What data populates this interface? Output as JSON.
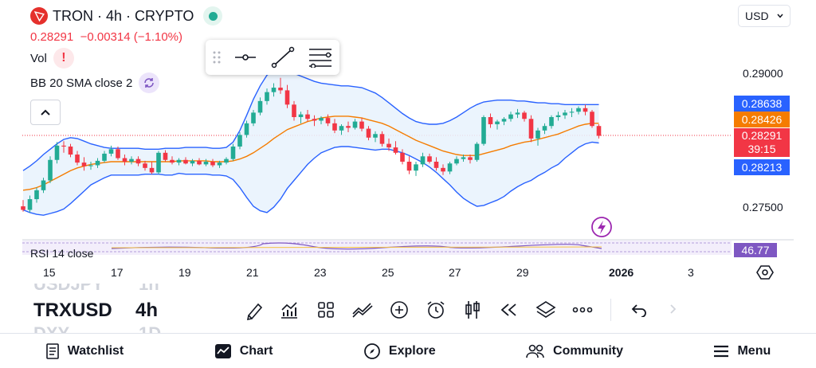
{
  "header": {
    "title": "TRON · 4h · CRYPTO",
    "price": "0.28291",
    "change": "−0.00314 (−1.10%)",
    "currency": "USD"
  },
  "indicators": {
    "vol_label": "Vol",
    "bb_label": "BB 20 SMA close 2",
    "rsi_label": "RSI 14 close",
    "rsi_value": "46.77"
  },
  "price_axis": {
    "labels": [
      "0.29000",
      "0.27500"
    ],
    "tags": {
      "bb_upper": "0.28638",
      "sma": "0.28426",
      "last": "0.28291",
      "countdown": "39:15",
      "bb_lower": "0.28213"
    }
  },
  "time_axis": {
    "labels": [
      "15",
      "17",
      "19",
      "21",
      "23",
      "25",
      "27",
      "29",
      "2026",
      "3"
    ]
  },
  "symbols": {
    "above": "USDJPY",
    "above_tf": "1h",
    "current": "TRXUSD",
    "current_tf": "4h",
    "below": "DXY",
    "below_tf": "1D"
  },
  "nav": {
    "watchlist": "Watchlist",
    "chart": "Chart",
    "explore": "Explore",
    "community": "Community",
    "menu": "Menu"
  },
  "colors": {
    "up": "#22ab94",
    "down": "#f23645",
    "bb": "#2962ff",
    "sma": "#f57c00",
    "rsi": "#7e57c2"
  },
  "chart_data": {
    "type": "candlestick",
    "title": "TRON · 4h · CRYPTO",
    "x_labels": [
      "15",
      "17",
      "19",
      "21",
      "23",
      "25",
      "27",
      "29",
      "2026",
      "3"
    ],
    "ylim": [
      0.2725,
      0.2935
    ],
    "candles": [
      [
        0.275,
        0.2757,
        0.2744,
        0.2746
      ],
      [
        0.2746,
        0.2762,
        0.2743,
        0.2758
      ],
      [
        0.2758,
        0.2771,
        0.2754,
        0.2768
      ],
      [
        0.2768,
        0.2782,
        0.2765,
        0.2779
      ],
      [
        0.2779,
        0.2806,
        0.2776,
        0.2802
      ],
      [
        0.2802,
        0.2822,
        0.2798,
        0.2818
      ],
      [
        0.2818,
        0.2823,
        0.281,
        0.2817
      ],
      [
        0.2817,
        0.282,
        0.2805,
        0.2808
      ],
      [
        0.2808,
        0.2812,
        0.2796,
        0.2799
      ],
      [
        0.2799,
        0.2805,
        0.279,
        0.2795
      ],
      [
        0.2795,
        0.28,
        0.2791,
        0.2796
      ],
      [
        0.2796,
        0.2804,
        0.2793,
        0.2801
      ],
      [
        0.2801,
        0.2812,
        0.2799,
        0.2809
      ],
      [
        0.2809,
        0.2818,
        0.2806,
        0.2814
      ],
      [
        0.2814,
        0.2817,
        0.2802,
        0.2804
      ],
      [
        0.2804,
        0.2808,
        0.2796,
        0.28
      ],
      [
        0.28,
        0.2806,
        0.2797,
        0.2803
      ],
      [
        0.2803,
        0.2806,
        0.2795,
        0.2798
      ],
      [
        0.2798,
        0.2801,
        0.279,
        0.2793
      ],
      [
        0.2793,
        0.28,
        0.2786,
        0.2788
      ],
      [
        0.2788,
        0.2812,
        0.2786,
        0.281
      ],
      [
        0.281,
        0.2813,
        0.28,
        0.2802
      ],
      [
        0.2802,
        0.2806,
        0.2797,
        0.2799
      ],
      [
        0.2799,
        0.2804,
        0.2796,
        0.2802
      ],
      [
        0.2802,
        0.2805,
        0.2797,
        0.2798
      ],
      [
        0.2798,
        0.2803,
        0.2795,
        0.2801
      ],
      [
        0.2801,
        0.2804,
        0.2796,
        0.2797
      ],
      [
        0.2797,
        0.2803,
        0.2795,
        0.28
      ],
      [
        0.28,
        0.2803,
        0.2794,
        0.2796
      ],
      [
        0.2796,
        0.2801,
        0.2793,
        0.2799
      ],
      [
        0.2799,
        0.2805,
        0.2797,
        0.2803
      ],
      [
        0.2803,
        0.282,
        0.2801,
        0.2817
      ],
      [
        0.2817,
        0.2833,
        0.2814,
        0.283
      ],
      [
        0.283,
        0.2846,
        0.2827,
        0.2843
      ],
      [
        0.2843,
        0.2858,
        0.284,
        0.2855
      ],
      [
        0.2855,
        0.2872,
        0.2852,
        0.2868
      ],
      [
        0.2868,
        0.2882,
        0.2864,
        0.2878
      ],
      [
        0.2878,
        0.2888,
        0.2873,
        0.2883
      ],
      [
        0.2883,
        0.2894,
        0.2876,
        0.288
      ],
      [
        0.288,
        0.2886,
        0.286,
        0.2864
      ],
      [
        0.2864,
        0.2868,
        0.2846,
        0.285
      ],
      [
        0.285,
        0.2856,
        0.2843,
        0.2853
      ],
      [
        0.2853,
        0.2858,
        0.2845,
        0.2848
      ],
      [
        0.2848,
        0.2852,
        0.284,
        0.2846
      ],
      [
        0.2846,
        0.2851,
        0.2842,
        0.2849
      ],
      [
        0.2849,
        0.2853,
        0.284,
        0.2843
      ],
      [
        0.2843,
        0.2848,
        0.2832,
        0.2835
      ],
      [
        0.2835,
        0.2842,
        0.283,
        0.284
      ],
      [
        0.284,
        0.2845,
        0.2833,
        0.2838
      ],
      [
        0.2838,
        0.2848,
        0.2836,
        0.2845
      ],
      [
        0.2845,
        0.2849,
        0.2834,
        0.2837
      ],
      [
        0.2837,
        0.284,
        0.2824,
        0.2827
      ],
      [
        0.2827,
        0.2834,
        0.2822,
        0.2831
      ],
      [
        0.2831,
        0.2834,
        0.2817,
        0.282
      ],
      [
        0.282,
        0.2826,
        0.2812,
        0.2816
      ],
      [
        0.2816,
        0.2823,
        0.2808,
        0.281
      ],
      [
        0.281,
        0.2814,
        0.2797,
        0.28
      ],
      [
        0.28,
        0.2806,
        0.2786,
        0.279
      ],
      [
        0.279,
        0.28,
        0.2784,
        0.2797
      ],
      [
        0.2797,
        0.281,
        0.2794,
        0.2806
      ],
      [
        0.2806,
        0.2809,
        0.2798,
        0.28
      ],
      [
        0.28,
        0.2805,
        0.279,
        0.2793
      ],
      [
        0.2793,
        0.2797,
        0.2785,
        0.2789
      ],
      [
        0.2789,
        0.28,
        0.2786,
        0.2798
      ],
      [
        0.2798,
        0.2806,
        0.2796,
        0.2803
      ],
      [
        0.2803,
        0.2808,
        0.28,
        0.2805
      ],
      [
        0.2805,
        0.2808,
        0.2798,
        0.2802
      ],
      [
        0.2802,
        0.2822,
        0.28,
        0.282
      ],
      [
        0.282,
        0.2852,
        0.2818,
        0.285
      ],
      [
        0.285,
        0.2854,
        0.2838,
        0.2842
      ],
      [
        0.2842,
        0.2847,
        0.2836,
        0.2845
      ],
      [
        0.2845,
        0.285,
        0.2841,
        0.2848
      ],
      [
        0.2848,
        0.2856,
        0.2845,
        0.2853
      ],
      [
        0.2853,
        0.2859,
        0.2849,
        0.2855
      ],
      [
        0.2855,
        0.2857,
        0.2845,
        0.2848
      ],
      [
        0.2848,
        0.2852,
        0.2822,
        0.2826
      ],
      [
        0.2826,
        0.2838,
        0.2818,
        0.2835
      ],
      [
        0.2835,
        0.2843,
        0.2831,
        0.284
      ],
      [
        0.284,
        0.2852,
        0.2837,
        0.285
      ],
      [
        0.285,
        0.2856,
        0.2846,
        0.2852
      ],
      [
        0.2852,
        0.2858,
        0.2848,
        0.2855
      ],
      [
        0.2855,
        0.286,
        0.285,
        0.2856
      ],
      [
        0.2856,
        0.2862,
        0.2853,
        0.286
      ],
      [
        0.286,
        0.2864,
        0.2852,
        0.2856
      ],
      [
        0.2856,
        0.2858,
        0.2838,
        0.284
      ],
      [
        0.284,
        0.2842,
        0.2826,
        0.2829
      ]
    ],
    "sma": [
      0.2768,
      0.2769,
      0.2771,
      0.2774,
      0.2778,
      0.2782,
      0.2786,
      0.279,
      0.2793,
      0.2795,
      0.2797,
      0.2798,
      0.2799,
      0.28,
      0.28,
      0.28,
      0.28,
      0.28,
      0.28,
      0.28,
      0.28,
      0.28,
      0.28,
      0.2801,
      0.2801,
      0.2801,
      0.2801,
      0.2801,
      0.28,
      0.28,
      0.28,
      0.2801,
      0.2803,
      0.2806,
      0.281,
      0.2815,
      0.282,
      0.2826,
      0.2831,
      0.2836,
      0.2839,
      0.2842,
      0.2845,
      0.2847,
      0.2849,
      0.285,
      0.2851,
      0.2851,
      0.2851,
      0.285,
      0.2849,
      0.2847,
      0.2845,
      0.2843,
      0.284,
      0.2836,
      0.2832,
      0.2828,
      0.2824,
      0.2821,
      0.2818,
      0.2815,
      0.2812,
      0.281,
      0.2808,
      0.2807,
      0.2807,
      0.2807,
      0.2809,
      0.2811,
      0.2813,
      0.2815,
      0.2818,
      0.282,
      0.2822,
      0.2823,
      0.2825,
      0.2827,
      0.2829,
      0.2831,
      0.2834,
      0.2837,
      0.284,
      0.2842,
      0.2843,
      0.2843
    ],
    "bb_upper": [
      0.279,
      0.2795,
      0.2801,
      0.2808,
      0.2814,
      0.282,
      0.2825,
      0.2827,
      0.2826,
      0.2823,
      0.282,
      0.2818,
      0.2816,
      0.2815,
      0.2815,
      0.2815,
      0.2815,
      0.2815,
      0.2814,
      0.2814,
      0.2814,
      0.2815,
      0.2815,
      0.2815,
      0.2816,
      0.2816,
      0.2816,
      0.2816,
      0.2815,
      0.2815,
      0.2816,
      0.2822,
      0.2835,
      0.2852,
      0.287,
      0.2885,
      0.2897,
      0.2903,
      0.2904,
      0.2902,
      0.2899,
      0.2896,
      0.2893,
      0.289,
      0.2888,
      0.2887,
      0.2886,
      0.2885,
      0.2885,
      0.2884,
      0.2883,
      0.288,
      0.2877,
      0.2872,
      0.2866,
      0.286,
      0.2854,
      0.2849,
      0.2845,
      0.2843,
      0.2842,
      0.2842,
      0.2843,
      0.2846,
      0.285,
      0.2855,
      0.286,
      0.2864,
      0.2867,
      0.2868,
      0.2869,
      0.2869,
      0.2869,
      0.2868,
      0.2868,
      0.2867,
      0.2866,
      0.2866,
      0.2865,
      0.2865,
      0.2864,
      0.2864,
      0.2864,
      0.2864,
      0.2864,
      0.2864
    ],
    "bb_lower": [
      0.2746,
      0.2743,
      0.2741,
      0.274,
      0.2742,
      0.2744,
      0.2747,
      0.2753,
      0.276,
      0.2767,
      0.2774,
      0.2778,
      0.2782,
      0.2785,
      0.2785,
      0.2785,
      0.2785,
      0.2785,
      0.2786,
      0.2786,
      0.2786,
      0.2785,
      0.2785,
      0.2787,
      0.2786,
      0.2786,
      0.2786,
      0.2786,
      0.2785,
      0.2785,
      0.2784,
      0.278,
      0.2771,
      0.276,
      0.275,
      0.2745,
      0.2743,
      0.2749,
      0.2758,
      0.277,
      0.2779,
      0.2788,
      0.2797,
      0.2804,
      0.281,
      0.2813,
      0.2816,
      0.2817,
      0.2817,
      0.2816,
      0.2815,
      0.2814,
      0.2813,
      0.2814,
      0.2814,
      0.2812,
      0.281,
      0.2807,
      0.2803,
      0.2799,
      0.2794,
      0.2788,
      0.2781,
      0.2774,
      0.2766,
      0.2759,
      0.2754,
      0.275,
      0.2751,
      0.2754,
      0.2757,
      0.2761,
      0.2767,
      0.2772,
      0.2776,
      0.2779,
      0.2784,
      0.2788,
      0.2793,
      0.2797,
      0.2804,
      0.281,
      0.2816,
      0.282,
      0.2822,
      0.2821
    ]
  }
}
